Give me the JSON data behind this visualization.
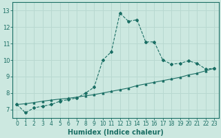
{
  "title": "",
  "xlabel": "Humidex (Indice chaleur)",
  "bg_color": "#cce8e0",
  "grid_color": "#b8d8d0",
  "line_color": "#1a6e64",
  "x_values": [
    0,
    1,
    2,
    3,
    4,
    5,
    6,
    7,
    8,
    9,
    10,
    11,
    12,
    13,
    14,
    15,
    16,
    17,
    18,
    19,
    20,
    21,
    22,
    23
  ],
  "y_main": [
    7.3,
    6.8,
    7.1,
    7.2,
    7.3,
    7.5,
    7.6,
    7.7,
    8.0,
    8.35,
    10.0,
    10.5,
    12.85,
    12.35,
    12.45,
    11.1,
    11.1,
    10.0,
    9.75,
    9.8,
    9.95,
    9.8,
    9.45,
    9.5
  ],
  "y_linear": [
    7.3,
    7.35,
    7.42,
    7.5,
    7.57,
    7.63,
    7.68,
    7.75,
    7.83,
    7.9,
    8.0,
    8.1,
    8.2,
    8.3,
    8.45,
    8.55,
    8.65,
    8.75,
    8.85,
    8.95,
    9.1,
    9.2,
    9.35,
    9.5
  ],
  "xlim": [
    -0.5,
    23.5
  ],
  "ylim": [
    6.5,
    13.5
  ],
  "yticks": [
    7,
    8,
    9,
    10,
    11,
    12,
    13
  ],
  "xticks": [
    0,
    1,
    2,
    3,
    4,
    5,
    6,
    7,
    8,
    9,
    10,
    11,
    12,
    13,
    14,
    15,
    16,
    17,
    18,
    19,
    20,
    21,
    22,
    23
  ],
  "tick_fontsize": 5.5,
  "xlabel_fontsize": 7,
  "linewidth": 0.8,
  "markersize": 2.0
}
